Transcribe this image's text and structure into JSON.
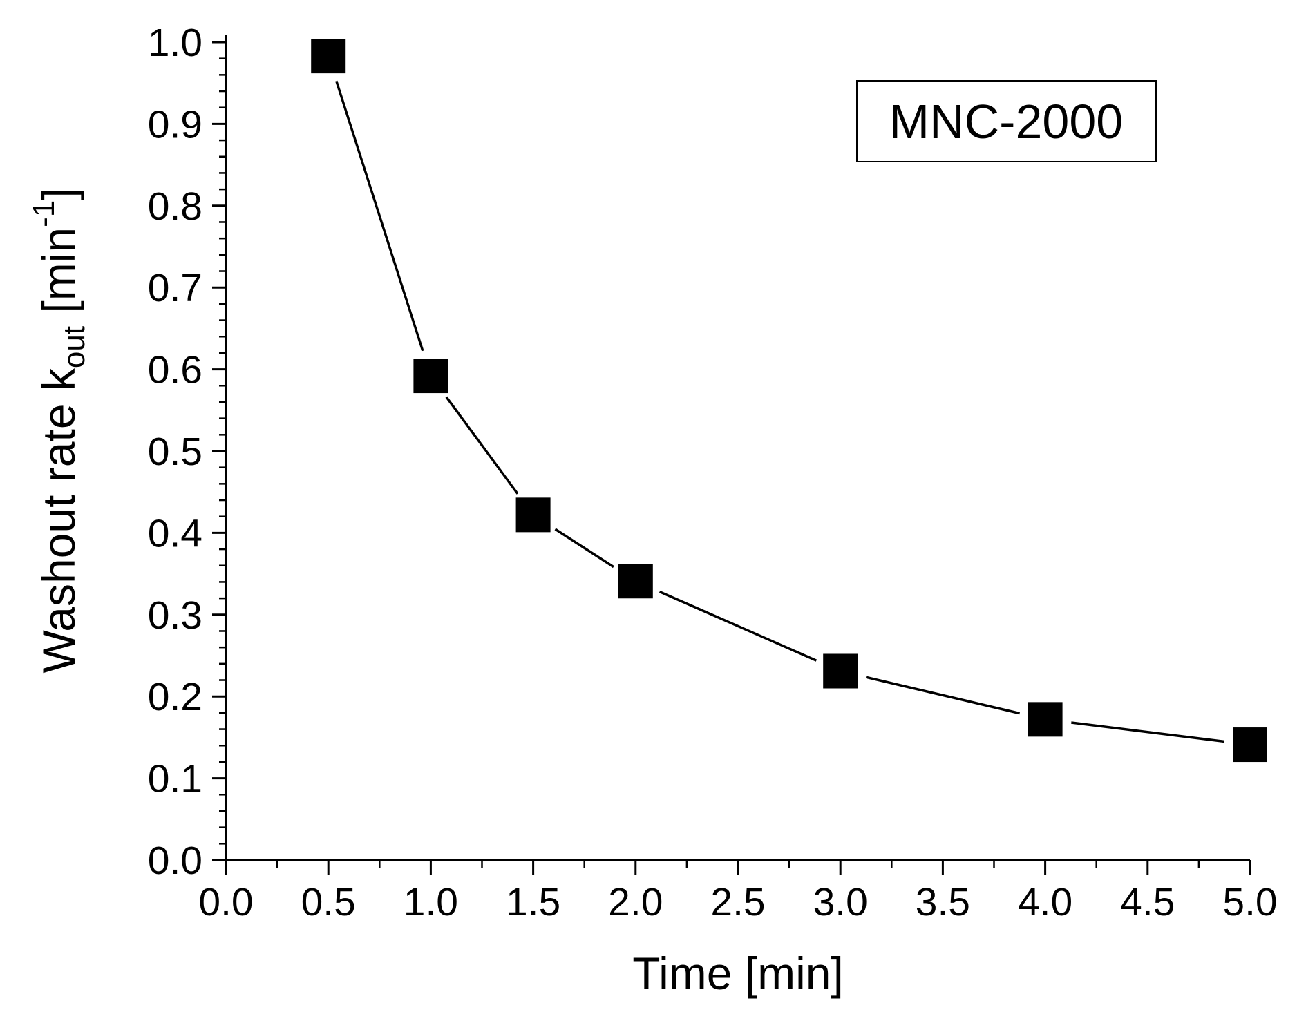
{
  "chart_data": {
    "type": "line",
    "title": "",
    "xlabel": "Time [min]",
    "ylabel": {
      "main": "Washout rate k",
      "subscript": "out",
      "unit_open": " [min",
      "superscript": "-1",
      "unit_close": "]"
    },
    "xlim": [
      0.0,
      5.0
    ],
    "ylim": [
      0.0,
      1.0
    ],
    "x_ticks": [
      "0.0",
      "0.5",
      "1.0",
      "1.5",
      "2.0",
      "2.5",
      "3.0",
      "3.5",
      "4.0",
      "4.5",
      "5.0"
    ],
    "y_ticks": [
      "0.0",
      "0.1",
      "0.2",
      "0.3",
      "0.4",
      "0.5",
      "0.6",
      "0.7",
      "0.8",
      "0.9",
      "1.0"
    ],
    "grid": false,
    "series": [
      {
        "name": "MNC-2000",
        "marker": "square",
        "color": "#000000",
        "x": [
          0.5,
          1.0,
          1.5,
          2.0,
          3.0,
          4.0,
          5.0
        ],
        "y": [
          0.983,
          0.592,
          0.422,
          0.341,
          0.231,
          0.172,
          0.141
        ]
      }
    ],
    "annotation": {
      "text": "MNC-2000",
      "placement": "top-right"
    }
  }
}
